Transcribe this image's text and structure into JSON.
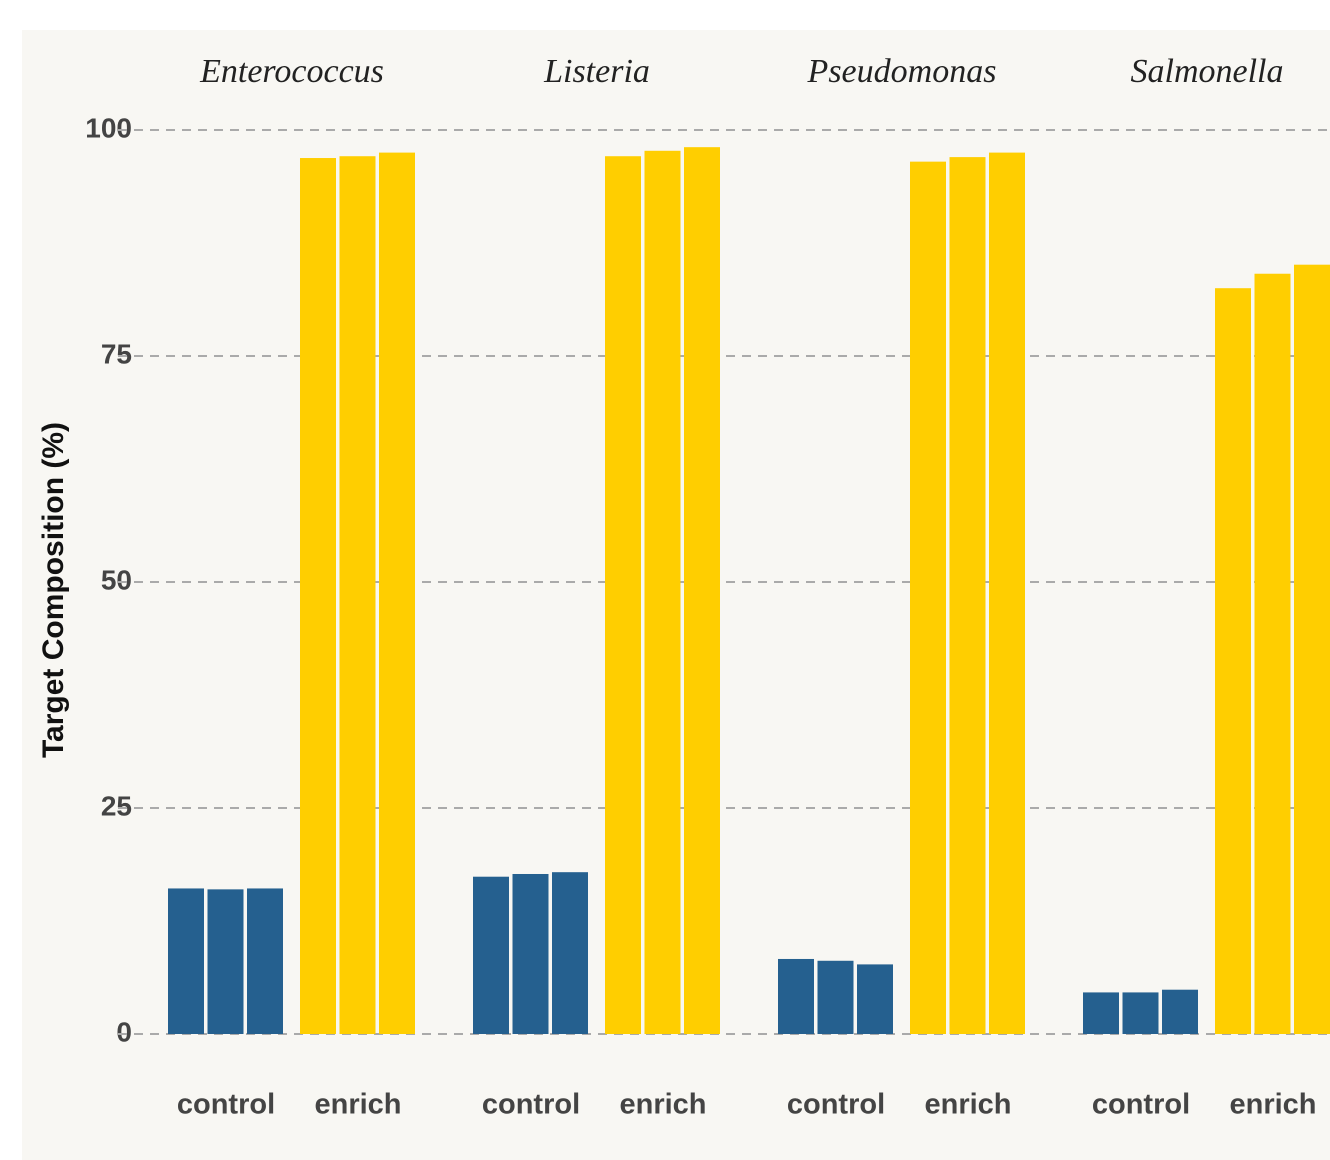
{
  "chart_data": {
    "type": "bar",
    "y_label": "Target Composition (%)",
    "categories": [
      "control",
      "enrich"
    ],
    "colors": [
      "#25608f",
      "#ffce00"
    ],
    "facets": [
      {
        "name": "Enterococcus",
        "values": [
          [
            16.1,
            16.0,
            16.1
          ],
          [
            96.9,
            97.1,
            97.5
          ]
        ]
      },
      {
        "name": "Listeria",
        "values": [
          [
            17.4,
            17.7,
            17.9
          ],
          [
            97.1,
            97.7,
            98.1
          ]
        ]
      },
      {
        "name": "Pseudomonas",
        "values": [
          [
            8.3,
            8.1,
            7.7
          ],
          [
            96.5,
            97.0,
            97.5
          ]
        ]
      },
      {
        "name": "Salmonella",
        "values": [
          [
            4.6,
            4.6,
            4.9
          ],
          [
            82.5,
            84.1,
            85.1
          ]
        ]
      }
    ],
    "ylim": [
      0,
      100
    ],
    "yticks": [
      0,
      25,
      50,
      75,
      100
    ],
    "grid": true
  }
}
